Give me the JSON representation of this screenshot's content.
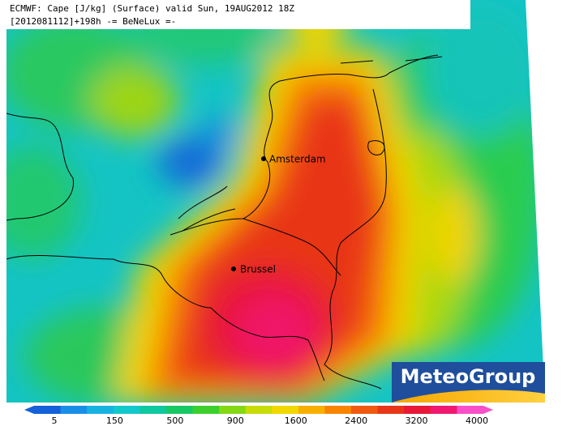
{
  "header": {
    "line1": "ECMWF: Cape [J/kg] (Surface) valid Sun, 19AUG2012 18Z",
    "line2": "[2012081112]+198h -= BeNeLux =-"
  },
  "cities": [
    {
      "label": "Amsterdam"
    },
    {
      "label": "Brussel"
    }
  ],
  "logo": "MeteoGroup",
  "colorbar": {
    "ticks": [
      5,
      150,
      500,
      900,
      1600,
      2400,
      3200,
      4000
    ],
    "colors": [
      "#1460d8",
      "#1a8ee6",
      "#18b2e0",
      "#12c8cc",
      "#10c8a0",
      "#18c864",
      "#3cd02c",
      "#84d814",
      "#c8dc08",
      "#f0d800",
      "#f8b000",
      "#f88400",
      "#f05a10",
      "#e83618",
      "#e81838",
      "#f01870",
      "#f850c8"
    ]
  }
}
